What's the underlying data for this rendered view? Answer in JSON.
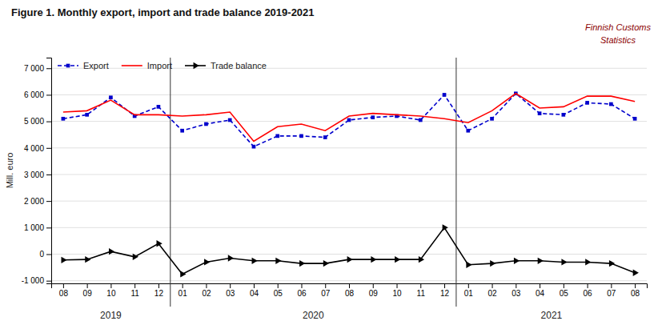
{
  "chart_data": {
    "type": "line",
    "title": "Figure  1. Monthly  export, import and trade balance 2019-2021",
    "y_label": "Mill. euro",
    "categories": [
      "08",
      "09",
      "10",
      "11",
      "12",
      "01",
      "02",
      "03",
      "04",
      "05",
      "06",
      "07",
      "08",
      "09",
      "10",
      "11",
      "12",
      "01",
      "02",
      "03",
      "04",
      "05",
      "06",
      "07",
      "08"
    ],
    "series": [
      {
        "name": "Export",
        "color": "#0000CC",
        "marker": "square",
        "line_style": "dashed",
        "values": [
          5100,
          5250,
          5900,
          5200,
          5550,
          4650,
          4900,
          5050,
          4050,
          4450,
          4450,
          4400,
          5050,
          5150,
          5200,
          5050,
          6000,
          4650,
          5100,
          6050,
          5300,
          5250,
          5700,
          5650,
          5100
        ]
      },
      {
        "name": "Import",
        "color": "#FF0000",
        "line_style": "solid",
        "values": [
          5350,
          5400,
          5800,
          5250,
          5250,
          5200,
          5250,
          5350,
          4250,
          4800,
          4900,
          4650,
          5200,
          5300,
          5250,
          5200,
          5100,
          4950,
          5400,
          6050,
          5500,
          5550,
          5950,
          5950,
          5750
        ]
      },
      {
        "name": "Trade balance",
        "color": "#000000",
        "marker": "triangle-right",
        "line_style": "solid",
        "values": [
          -220,
          -200,
          100,
          -100,
          400,
          -750,
          -300,
          -150,
          -250,
          -250,
          -350,
          -350,
          -200,
          -200,
          -200,
          -200,
          1000,
          -400,
          -350,
          -250,
          -250,
          -300,
          -300,
          -350,
          -700
        ]
      }
    ],
    "ylim": [
      -1100,
      7400
    ],
    "yticks": [
      {
        "value": -1000,
        "label": "-1 000"
      },
      0,
      {
        "value": 1000,
        "label": "1 000"
      },
      {
        "value": 2000,
        "label": "2 000"
      },
      {
        "value": 3000,
        "label": "3 000"
      },
      {
        "value": 4000,
        "label": "4 000"
      },
      {
        "value": 5000,
        "label": "5 000"
      },
      {
        "value": 6000,
        "label": "6 000"
      },
      {
        "value": 7000,
        "label": "7 000"
      }
    ],
    "grid": true,
    "legend": "top-left",
    "year_dividers": [
      4.5,
      16.5
    ],
    "annotations": [
      {
        "text": "2019",
        "x": 2.0
      },
      {
        "text": "2020",
        "x": 10.5
      },
      {
        "text": "2021",
        "x": 20.5
      },
      {
        "text": "Finnish Customs",
        "color": "#8B0000"
      },
      {
        "text": "Statistics",
        "color": "#8B0000"
      }
    ]
  }
}
